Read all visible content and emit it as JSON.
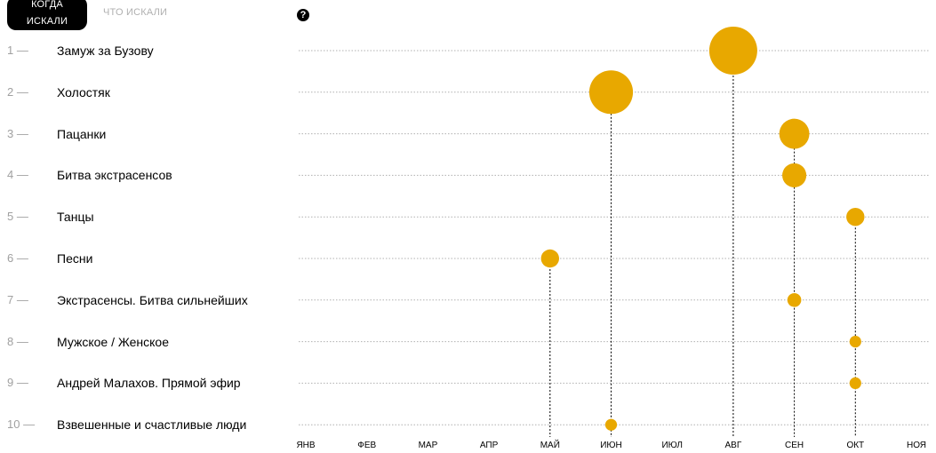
{
  "tabs": {
    "active": "КОГДА ИСКАЛИ",
    "inactive": "ЧТО ИСКАЛИ"
  },
  "help_icon": "question-circle-icon",
  "colors": {
    "bubble": "#E8A800",
    "grid": "#b0b0b0",
    "stem": "#000000",
    "rank": "#a0a0a0"
  },
  "chart_data": {
    "type": "scatter",
    "x_categories": [
      "ЯНВ",
      "ФЕВ",
      "МАР",
      "АПР",
      "МАЙ",
      "ИЮН",
      "ИЮЛ",
      "АВГ",
      "СЕН",
      "ОКТ",
      "НОЯ"
    ],
    "rows": [
      {
        "rank": "1 —",
        "label": "Замуж за Бузову",
        "month": "АВГ",
        "size": 1.0
      },
      {
        "rank": "2 —",
        "label": "Холостяк",
        "month": "ИЮН",
        "size": 0.9
      },
      {
        "rank": "3 —",
        "label": "Пацанки",
        "month": "СЕН",
        "size": 0.58
      },
      {
        "rank": "4 —",
        "label": "Битва экстрасенсов",
        "month": "СЕН",
        "size": 0.44
      },
      {
        "rank": "5 —",
        "label": "Танцы",
        "month": "ОКТ",
        "size": 0.3
      },
      {
        "rank": "6 —",
        "label": "Песни",
        "month": "МАЙ",
        "size": 0.3
      },
      {
        "rank": "7 —",
        "label": "Экстрасенсы. Битва сильнейших",
        "month": "СЕН",
        "size": 0.2
      },
      {
        "rank": "8 —",
        "label": "Мужское / Женское",
        "month": "ОКТ",
        "size": 0.15
      },
      {
        "rank": "9 —",
        "label": "Андрей Малахов. Прямой эфир",
        "month": "ОКТ",
        "size": 0.15
      },
      {
        "rank": "10 —",
        "label": "Взвешенные и счастливые люди",
        "month": "ИЮН",
        "size": 0.15
      }
    ]
  }
}
